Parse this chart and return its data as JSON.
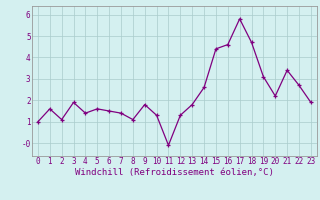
{
  "x": [
    0,
    1,
    2,
    3,
    4,
    5,
    6,
    7,
    8,
    9,
    10,
    11,
    12,
    13,
    14,
    15,
    16,
    17,
    18,
    19,
    20,
    21,
    22,
    23
  ],
  "y": [
    1.0,
    1.6,
    1.1,
    1.9,
    1.4,
    1.6,
    1.5,
    1.4,
    1.1,
    1.8,
    1.3,
    -0.1,
    1.3,
    1.8,
    2.6,
    4.4,
    4.6,
    5.8,
    4.7,
    3.1,
    2.2,
    3.4,
    2.7,
    1.9
  ],
  "line_color": "#800080",
  "marker": "+",
  "bg_color": "#d4f0f0",
  "grid_color": "#aacccc",
  "xlabel": "Windchill (Refroidissement éolien,°C)",
  "ylim": [
    -0.6,
    6.4
  ],
  "xlim": [
    -0.5,
    23.5
  ],
  "yticks": [
    0,
    1,
    2,
    3,
    4,
    5,
    6
  ],
  "ytick_labels": [
    "-0",
    "1",
    "2",
    "3",
    "4",
    "5",
    "6"
  ],
  "xticks": [
    0,
    1,
    2,
    3,
    4,
    5,
    6,
    7,
    8,
    9,
    10,
    11,
    12,
    13,
    14,
    15,
    16,
    17,
    18,
    19,
    20,
    21,
    22,
    23
  ],
  "tick_fontsize": 5.5,
  "label_fontsize": 6.5,
  "line_width": 0.9,
  "marker_size": 3.5,
  "marker_ew": 0.9
}
